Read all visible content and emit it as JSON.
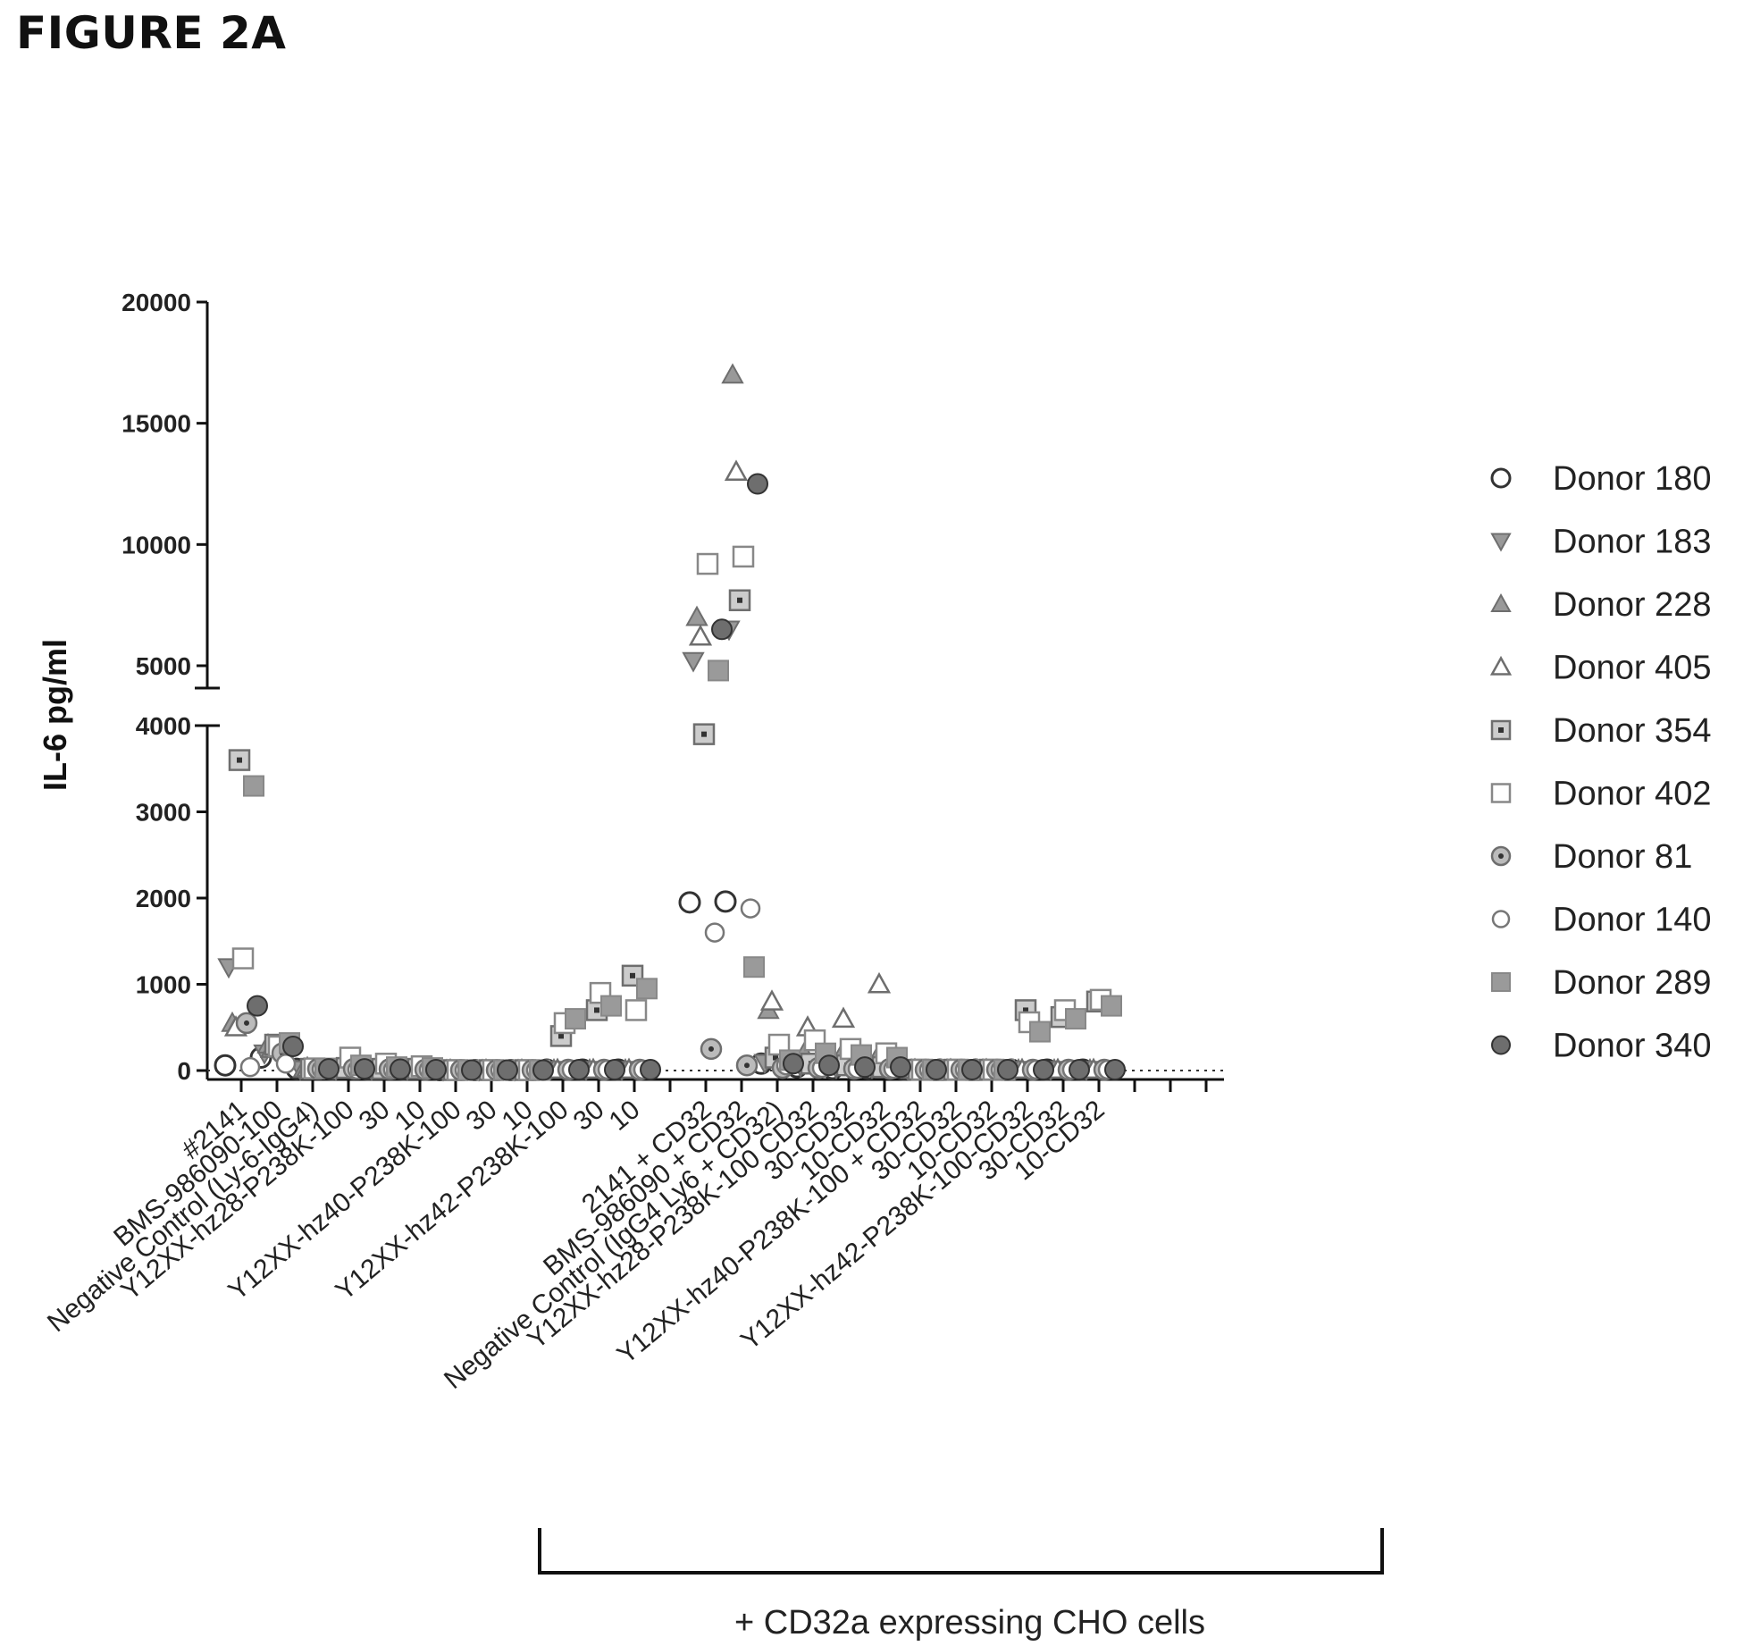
{
  "figure_label": "FIGURE 2A",
  "chart_data": {
    "type": "scatter",
    "ylabel": "IL-6 pg/ml",
    "y_axis": {
      "broken": true,
      "lower_segment": {
        "range": [
          0,
          4000
        ],
        "ticks": [
          "0",
          "1000",
          "2000",
          "3000",
          "4000"
        ]
      },
      "upper_segment": {
        "range": [
          4000,
          20000
        ],
        "ticks": [
          "5000",
          "10000",
          "15000",
          "20000"
        ]
      }
    },
    "tick_values_lower": [
      0,
      1000,
      2000,
      3000,
      4000
    ],
    "tick_values_upper": [
      5000,
      10000,
      15000,
      20000
    ],
    "zero_line": "dotted",
    "grid": false,
    "legend_position": "right",
    "categories": [
      "#2141",
      "BMS-986090-100",
      "Negative Control (Ly-6-IgG4)",
      "Y12XX-hz28-P238K-100",
      "30",
      "10",
      "Y12XX-hz40-P238K-100",
      "30",
      "10",
      "Y12XX-hz42-P238K-100",
      "30",
      "10",
      "2141 + CD32",
      "BMS-986090 + CD32",
      "Negative Control (IgG4 Ly6 + CD32)",
      "Y12XX-hz28-P238K-100 CD32",
      "30-CD32",
      "10-CD32",
      "Y12XX-hz40-P238K-100 + CD32",
      "30-CD32",
      "10-CD32",
      "Y12XX-hz42-P238K-100-CD32",
      "30-CD32",
      "10-CD32"
    ],
    "category_slots": [
      0,
      1,
      2,
      3,
      4,
      5,
      6,
      7,
      8,
      9,
      10,
      11,
      13,
      14,
      15,
      16,
      17,
      18,
      19,
      20,
      21,
      22,
      23,
      24
    ],
    "series": [
      {
        "name": "Donor 180",
        "marker": "circle-open",
        "values": [
          60,
          150,
          20,
          10,
          10,
          10,
          5,
          5,
          5,
          10,
          10,
          10,
          1950,
          1960,
          80,
          40,
          20,
          20,
          10,
          10,
          10,
          10,
          10,
          10
        ]
      },
      {
        "name": "Donor 183",
        "marker": "tri-down",
        "values": [
          1200,
          200,
          15,
          10,
          10,
          10,
          5,
          5,
          5,
          10,
          10,
          10,
          5200,
          6500,
          90,
          50,
          30,
          30,
          10,
          10,
          10,
          10,
          10,
          10
        ]
      },
      {
        "name": "Donor 228",
        "marker": "tri-up-filled",
        "values": [
          550,
          300,
          20,
          20,
          15,
          10,
          5,
          5,
          5,
          10,
          10,
          10,
          7000,
          17000,
          700,
          200,
          150,
          120,
          10,
          10,
          10,
          10,
          10,
          10
        ]
      },
      {
        "name": "Donor 405",
        "marker": "tri-up-open",
        "values": [
          500,
          250,
          30,
          20,
          15,
          15,
          5,
          5,
          5,
          10,
          10,
          10,
          6200,
          13000,
          800,
          500,
          600,
          1000,
          10,
          10,
          10,
          10,
          10,
          10
        ]
      },
      {
        "name": "Donor 354",
        "marker": "square-dot",
        "values": [
          3600,
          300,
          20,
          30,
          20,
          20,
          5,
          5,
          5,
          400,
          700,
          1100,
          3900,
          7700,
          150,
          80,
          60,
          40,
          10,
          10,
          10,
          700,
          620,
          800
        ]
      },
      {
        "name": "Donor 402",
        "marker": "square-open",
        "values": [
          1300,
          280,
          25,
          150,
          80,
          50,
          5,
          5,
          5,
          550,
          900,
          700,
          9200,
          9500,
          300,
          350,
          250,
          200,
          10,
          10,
          10,
          560,
          700,
          820
        ]
      },
      {
        "name": "Donor 81",
        "marker": "circle-dot",
        "values": [
          550,
          200,
          20,
          20,
          15,
          10,
          5,
          5,
          5,
          10,
          10,
          10,
          250,
          60,
          30,
          30,
          20,
          20,
          10,
          10,
          10,
          10,
          10,
          10
        ]
      },
      {
        "name": "Donor 140",
        "marker": "circle-open-small",
        "values": [
          40,
          80,
          15,
          10,
          10,
          10,
          5,
          5,
          5,
          10,
          10,
          10,
          1600,
          1880,
          60,
          30,
          20,
          20,
          10,
          10,
          10,
          10,
          10,
          10
        ]
      },
      {
        "name": "Donor 289",
        "marker": "square-filled",
        "values": [
          3300,
          320,
          25,
          60,
          40,
          30,
          5,
          5,
          5,
          600,
          750,
          950,
          4800,
          1200,
          120,
          200,
          180,
          150,
          10,
          10,
          10,
          450,
          600,
          750
        ]
      },
      {
        "name": "Donor 340",
        "marker": "circle-filled",
        "values": [
          750,
          280,
          20,
          20,
          15,
          10,
          5,
          5,
          5,
          10,
          10,
          10,
          6500,
          12500,
          80,
          60,
          40,
          40,
          10,
          10,
          10,
          10,
          10,
          10
        ]
      }
    ],
    "bracket": {
      "label": "+ CD32a expressing CHO cells",
      "from_category": 12,
      "to_category": 23
    }
  }
}
